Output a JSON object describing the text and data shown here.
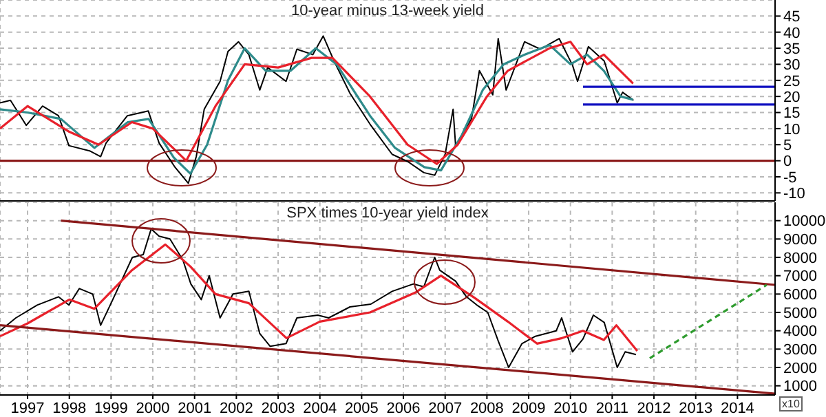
{
  "chart_data": [
    {
      "type": "line",
      "title": "10-year minus 13-week yield",
      "xlim": [
        1996.34,
        2014.9
      ],
      "xticks": [
        1997,
        1998,
        1999,
        2000,
        2001,
        2002,
        2003,
        2004,
        2005,
        2006,
        2007,
        2008,
        2009,
        2010,
        2011,
        2012,
        2013,
        2014
      ],
      "ylim": [
        -12.5,
        50
      ],
      "yticks": [
        -10,
        -5,
        0,
        5,
        10,
        15,
        20,
        25,
        30,
        35,
        40,
        45
      ],
      "grid": true,
      "tick_labels": "y",
      "ref_lines": [
        {
          "axis": "y",
          "value": 0,
          "color": "#8b1a1a"
        }
      ],
      "series": [
        {
          "color": "#000000",
          "x": [
            1996.34,
            1996.59,
            1996.97,
            1997.36,
            1997.74,
            1997.99,
            1998.5,
            1998.75,
            1998.88,
            1999.39,
            1999.89,
            2000.15,
            2000.53,
            2000.85,
            2001.04,
            2001.23,
            2001.61,
            2001.8,
            2002.05,
            2002.3,
            2002.56,
            2002.75,
            2003.19,
            2003.45,
            2003.83,
            2004.08,
            2004.34,
            2004.72,
            2005.22,
            2005.73,
            2006.11,
            2006.49,
            2006.75,
            2007.0,
            2007.19,
            2007.25,
            2007.63,
            2007.82,
            2008.14,
            2008.27,
            2008.46,
            2008.9,
            2009.28,
            2009.73,
            2010.05,
            2010.17,
            2010.43,
            2010.81,
            2011.12,
            2011.25,
            2011.51
          ],
          "values": [
            18,
            18.8,
            11,
            17,
            14,
            4.7,
            3,
            1.3,
            5.5,
            14,
            15.5,
            5.5,
            -2,
            -7,
            1.3,
            16,
            24.7,
            34,
            37,
            33,
            22,
            29,
            24.7,
            34.7,
            33,
            38.8,
            31,
            21,
            11,
            2,
            -0.3,
            -3.7,
            -4.5,
            2,
            16,
            4.7,
            13,
            28,
            20.5,
            38,
            22,
            37,
            34.7,
            38,
            29.7,
            24.7,
            35.5,
            31,
            18,
            21.3,
            18.8
          ]
        },
        {
          "color": "#2e8b8b",
          "x": [
            1996.34,
            1997.0,
            1997.8,
            1998.6,
            1999.4,
            1999.9,
            2000.5,
            2000.9,
            2001.3,
            2001.8,
            2002.2,
            2002.7,
            2003.3,
            2003.9,
            2004.4,
            2005.2,
            2005.8,
            2006.5,
            2006.9,
            2007.4,
            2007.9,
            2008.4,
            2008.9,
            2009.5,
            2010.0,
            2010.4,
            2010.8,
            2011.2,
            2011.5
          ],
          "values": [
            16,
            15,
            13,
            4,
            12,
            13,
            1,
            -4,
            5,
            25,
            35,
            28,
            28,
            35,
            30,
            14,
            4,
            -2,
            -3,
            8,
            22,
            30,
            33,
            36,
            30,
            33,
            28,
            20,
            19
          ]
        },
        {
          "color": "#e8212b",
          "x": [
            1996.34,
            1997.0,
            1998.0,
            1998.7,
            1999.5,
            2000.0,
            2000.8,
            2001.5,
            2002.2,
            2003.0,
            2003.8,
            2004.3,
            2005.2,
            2006.1,
            2006.8,
            2007.3,
            2008.0,
            2008.5,
            2009.5,
            2010.0,
            2010.4,
            2010.8,
            2011.5
          ],
          "values": [
            10,
            17,
            9,
            5,
            12,
            10,
            0,
            17,
            30,
            29,
            32,
            32,
            20,
            5,
            -1,
            5,
            20,
            28,
            35,
            37,
            30,
            33,
            24
          ]
        },
        {
          "color": "#1010c0",
          "x": [
            2010.3,
            2014.9
          ],
          "values": [
            23,
            23
          ]
        },
        {
          "color": "#1010c0",
          "x": [
            2010.3,
            2014.9
          ],
          "values": [
            17.5,
            17.5
          ]
        }
      ]
    },
    {
      "type": "line",
      "title": "SPX times 10-year yield index",
      "xlim": [
        1996.34,
        2014.9
      ],
      "xticks": [
        1997,
        1998,
        1999,
        2000,
        2001,
        2002,
        2003,
        2004,
        2005,
        2006,
        2007,
        2008,
        2009,
        2010,
        2011,
        2012,
        2013,
        2014
      ],
      "ylim": [
        500,
        11000
      ],
      "yticks": [
        1000,
        2000,
        3000,
        4000,
        5000,
        6000,
        7000,
        8000,
        9000,
        10000
      ],
      "grid": true,
      "annotations": [
        "x10"
      ],
      "series": [
        {
          "color": "#000000",
          "x": [
            1996.34,
            1996.72,
            1997.23,
            1997.74,
            1997.99,
            1998.24,
            1998.56,
            1998.75,
            1999.01,
            1999.51,
            1999.77,
            1999.96,
            2000.15,
            2000.41,
            2000.72,
            2000.91,
            2001.16,
            2001.35,
            2001.61,
            2001.92,
            2002.3,
            2002.56,
            2002.81,
            2003.19,
            2003.45,
            2003.95,
            2004.21,
            2004.72,
            2005.22,
            2005.73,
            2006.24,
            2006.49,
            2006.75,
            2006.87,
            2007.25,
            2007.51,
            2007.76,
            2008.02,
            2008.27,
            2008.52,
            2008.84,
            2009.16,
            2009.66,
            2009.79,
            2010.05,
            2010.3,
            2010.55,
            2010.81,
            2011.12,
            2011.31,
            2011.57
          ],
          "values": [
            4000,
            4700,
            5400,
            5850,
            5400,
            6300,
            6000,
            4300,
            5550,
            8000,
            8150,
            9550,
            9150,
            9000,
            7850,
            6550,
            5700,
            7000,
            4700,
            6000,
            6150,
            3850,
            3150,
            3300,
            4700,
            4850,
            4700,
            5300,
            5450,
            6150,
            6550,
            6400,
            8000,
            7300,
            6700,
            5850,
            5400,
            5000,
            3450,
            2000,
            3300,
            3700,
            4000,
            4700,
            2850,
            3550,
            4850,
            4450,
            2000,
            2850,
            2700
          ]
        },
        {
          "color": "#e8212b",
          "x": [
            1996.34,
            1997.0,
            1998.0,
            1998.6,
            1999.5,
            2000.3,
            2000.9,
            2001.5,
            2002.3,
            2003.2,
            2004.0,
            2005.2,
            2006.3,
            2006.9,
            2007.7,
            2008.5,
            2009.2,
            2009.8,
            2010.3,
            2010.8,
            2011.1,
            2011.6
          ],
          "values": [
            3700,
            4400,
            5700,
            5200,
            7300,
            8700,
            7500,
            6000,
            5500,
            3600,
            4500,
            5000,
            6100,
            7000,
            5800,
            4500,
            3300,
            3600,
            4000,
            3500,
            4300,
            2900
          ]
        },
        {
          "color": "#8b1a1a",
          "x": [
            1997.8,
            2014.9
          ],
          "values": [
            10000,
            6500
          ]
        },
        {
          "color": "#8b1a1a",
          "x": [
            1996.34,
            2014.9
          ],
          "values": [
            4300,
            570
          ]
        },
        {
          "color": "#2e9b2e",
          "line_style": "dashed",
          "x": [
            2011.9,
            2014.7
          ],
          "values": [
            2500,
            6500
          ]
        }
      ]
    }
  ]
}
